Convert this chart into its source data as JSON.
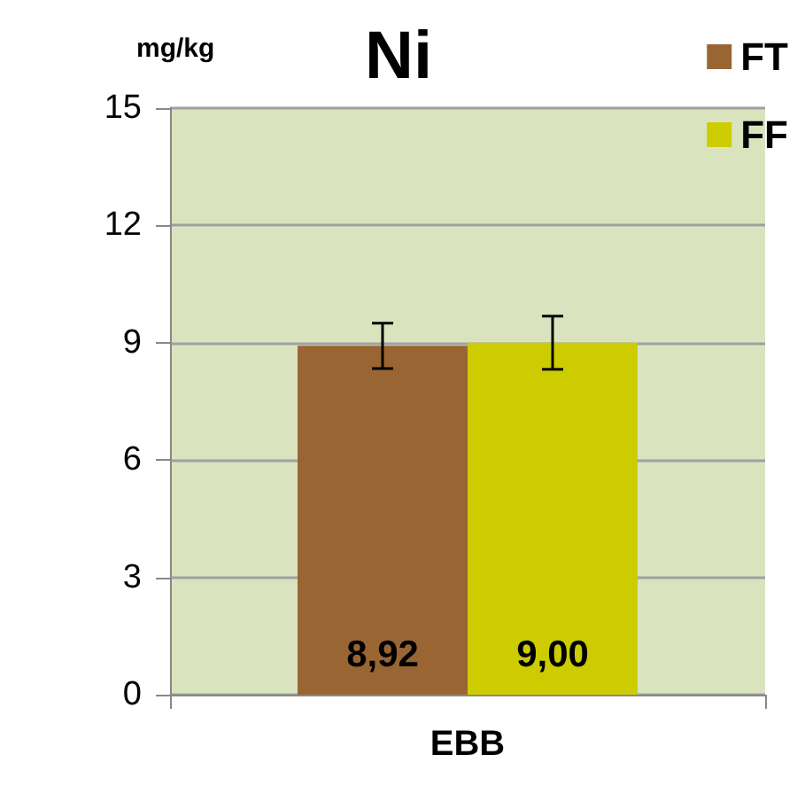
{
  "chart_data": {
    "type": "bar",
    "title": "Ni",
    "ylabel": "mg/kg",
    "categories": [
      "EBB"
    ],
    "series": [
      {
        "name": "FT",
        "color": "#996633",
        "values": [
          8.92
        ],
        "errors": [
          0.58
        ],
        "value_labels": [
          "8,92"
        ]
      },
      {
        "name": "FF",
        "color": "#cccc00",
        "values": [
          9.0
        ],
        "errors": [
          0.68
        ],
        "value_labels": [
          "9,00"
        ]
      }
    ],
    "ylim": [
      0,
      15
    ],
    "yticks": [
      0,
      3,
      6,
      9,
      12,
      15
    ],
    "grid": "y",
    "legend": "top right"
  }
}
